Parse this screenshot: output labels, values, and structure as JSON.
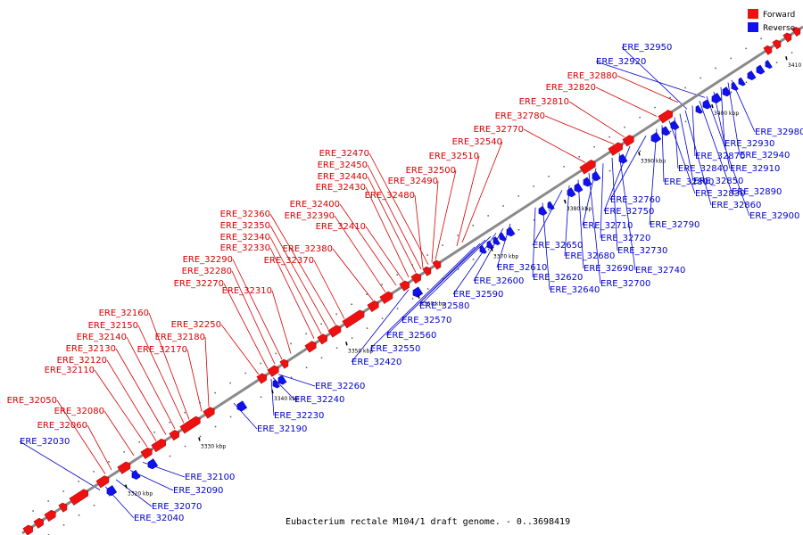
{
  "caption": "Eubacterium rectale M104/1 draft genome. - 0..3698419",
  "legend": [
    {
      "label": "Forward",
      "color": "#ee1111"
    },
    {
      "label": "Reverse",
      "color": "#1111ee"
    }
  ],
  "colors": {
    "forward": "#ee1111",
    "reverse": "#1111ee",
    "forward_label": "#d40000",
    "reverse_label": "#0000cc",
    "axis": "#888888"
  },
  "ticks": [
    "3320 kbp",
    "3330 kbp",
    "3340 kbp",
    "3350 kbp",
    "3360 kbp",
    "3370 kbp",
    "3380 kbp",
    "3390 kbp",
    "3400 kbp",
    "3410 kbp"
  ],
  "forward_labels": [
    "ERE_32050",
    "ERE_32060",
    "ERE_32080",
    "ERE_32110",
    "ERE_32120",
    "ERE_32130",
    "ERE_32140",
    "ERE_32150",
    "ERE_32160",
    "ERE_32170",
    "ERE_32180",
    "ERE_32250",
    "ERE_32270",
    "ERE_32280",
    "ERE_32290",
    "ERE_32310",
    "ERE_32330",
    "ERE_32340",
    "ERE_32350",
    "ERE_32360",
    "ERE_32370",
    "ERE_32380",
    "ERE_32390",
    "ERE_32400",
    "ERE_32410",
    "ERE_32430",
    "ERE_32440",
    "ERE_32450",
    "ERE_32470",
    "ERE_32480",
    "ERE_32490",
    "ERE_32500",
    "ERE_32510",
    "ERE_32540",
    "ERE_32770",
    "ERE_32780",
    "ERE_32810",
    "ERE_32820",
    "ERE_32880"
  ],
  "reverse_labels": [
    "ERE_32030",
    "ERE_32040",
    "ERE_32070",
    "ERE_32090",
    "ERE_32100",
    "ERE_32190",
    "ERE_32230",
    "ERE_32240",
    "ERE_32260",
    "ERE_32420",
    "ERE_32550",
    "ERE_32560",
    "ERE_32570",
    "ERE_32580",
    "ERE_32590",
    "ERE_32600",
    "ERE_32610",
    "ERE_32620",
    "ERE_32640",
    "ERE_32650",
    "ERE_32680",
    "ERE_32690",
    "ERE_32700",
    "ERE_32710",
    "ERE_32720",
    "ERE_32730",
    "ERE_32740",
    "ERE_32750",
    "ERE_32760",
    "ERE_32790",
    "ERE_32800",
    "ERE_32830",
    "ERE_32840",
    "ERE_32850",
    "ERE_32860",
    "ERE_32870",
    "ERE_32890",
    "ERE_32900",
    "ERE_32910",
    "ERE_32920",
    "ERE_32930",
    "ERE_32940",
    "ERE_32950",
    "ERE_32980"
  ]
}
